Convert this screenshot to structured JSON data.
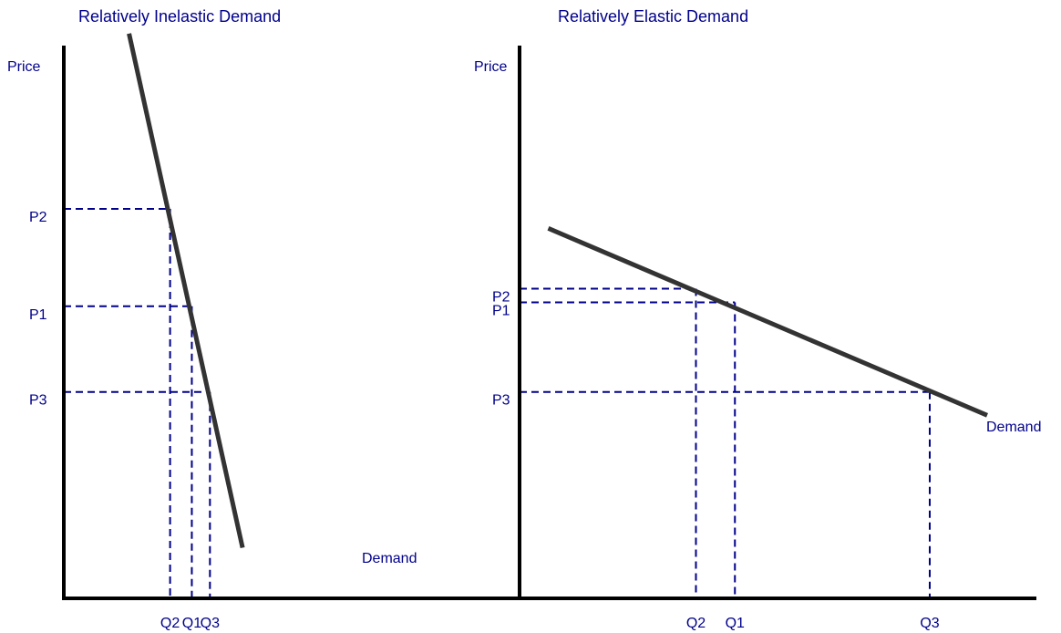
{
  "colors": {
    "text": "#00008b",
    "guide": "#00008b",
    "axis": "#000000",
    "curve": "#333333",
    "background": "#ffffff"
  },
  "chart_data": [
    {
      "type": "line",
      "title": "Relatively Inelastic Demand",
      "ylabel": "Price",
      "xlabel": "",
      "curve_label": "Demand",
      "grid": false,
      "series": [
        {
          "name": "Demand",
          "points": [
            [
              2.7,
              14.5
            ],
            [
              7.4,
              1.3
            ]
          ]
        }
      ],
      "price_levels": [
        {
          "label": "P2",
          "price": 10.0,
          "quantity_label": "Q2",
          "quantity": 4.4
        },
        {
          "label": "P1",
          "price": 7.5,
          "quantity_label": "Q1",
          "quantity": 5.3
        },
        {
          "label": "P3",
          "price": 5.3,
          "quantity_label": "Q3",
          "quantity": 6.05
        }
      ]
    },
    {
      "type": "line",
      "title": "Relatively Elastic Demand",
      "ylabel": "Price",
      "xlabel": "",
      "curve_label": "Demand",
      "grid": false,
      "series": [
        {
          "name": "Demand",
          "points": [
            [
              0.7,
              9.5
            ],
            [
              11.4,
              4.7
            ]
          ]
        }
      ],
      "price_levels": [
        {
          "label": "P2",
          "price": 7.95,
          "quantity_label": "Q2",
          "quantity": 4.3
        },
        {
          "label": "P1",
          "price": 7.6,
          "quantity_label": "Q1",
          "quantity": 5.25
        },
        {
          "label": "P3",
          "price": 5.3,
          "quantity_label": "Q3",
          "quantity": 10.0
        }
      ]
    }
  ]
}
